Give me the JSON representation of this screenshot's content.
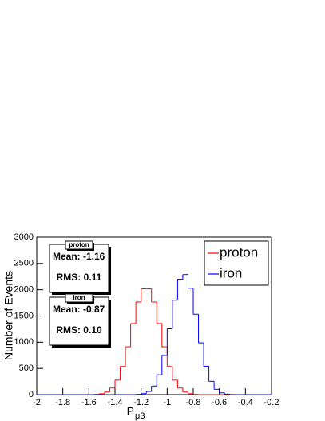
{
  "chart_data": {
    "type": "histogram",
    "ylabel": "Number of Events",
    "xlabel": "P",
    "xlabel_subscript": "μ3",
    "bins": [
      -2,
      -1.96,
      -1.92,
      -1.88,
      -1.84,
      -1.8,
      -1.76,
      -1.72,
      -1.68,
      -1.64,
      -1.6,
      -1.56,
      -1.52,
      -1.48,
      -1.44,
      -1.4,
      -1.36,
      -1.32,
      -1.28,
      -1.24,
      -1.2,
      -1.16,
      -1.12,
      -1.08,
      -1.04,
      -1,
      -0.96,
      -0.92,
      -0.88,
      -0.84,
      -0.8,
      -0.76,
      -0.72,
      -0.68,
      -0.64,
      -0.6,
      -0.56,
      -0.52,
      -0.48,
      -0.44,
      -0.4,
      -0.36,
      -0.32,
      -0.28,
      -0.24,
      -0.2
    ],
    "series": [
      {
        "name": "proton",
        "color": "#ff0000",
        "values": [
          0,
          0,
          0,
          0,
          0,
          0,
          0,
          0,
          0,
          0,
          0,
          5,
          17,
          50,
          126,
          277,
          537,
          912,
          1356,
          1767,
          2017,
          2017,
          1767,
          1356,
          912,
          537,
          277,
          126,
          50,
          17,
          5,
          0,
          0,
          0,
          0,
          0,
          0,
          0,
          0,
          0,
          0,
          0,
          0,
          0,
          0
        ],
        "stats": {
          "title": "proton",
          "mean": "Mean: -1.16",
          "rms": "RMS: 0.11"
        }
      },
      {
        "name": "iron",
        "color": "#0000ff",
        "values": [
          0,
          0,
          0,
          0,
          0,
          0,
          0,
          0,
          0,
          0,
          0,
          0,
          0,
          0,
          0,
          0,
          0,
          0,
          0,
          5,
          19,
          60,
          163,
          378,
          747,
          1256,
          1801,
          2199,
          2289,
          2029,
          1534,
          988,
          542,
          254,
          101,
          34,
          10,
          2,
          0,
          0,
          0,
          0,
          0,
          0,
          0
        ],
        "stats": {
          "title": "iron",
          "mean": "Mean: -0.87",
          "rms": "RMS: 0.10"
        }
      }
    ],
    "xlim": [
      -2,
      -0.2
    ],
    "xticks": [
      -2,
      -1.8,
      -1.6,
      -1.4,
      -1.2,
      -1,
      -0.8,
      -0.6,
      -0.4,
      -0.2
    ],
    "ylim": [
      0,
      3000
    ],
    "yticks": [
      0,
      500,
      1000,
      1500,
      2000,
      2500,
      3000
    ],
    "legend": "top-right"
  }
}
